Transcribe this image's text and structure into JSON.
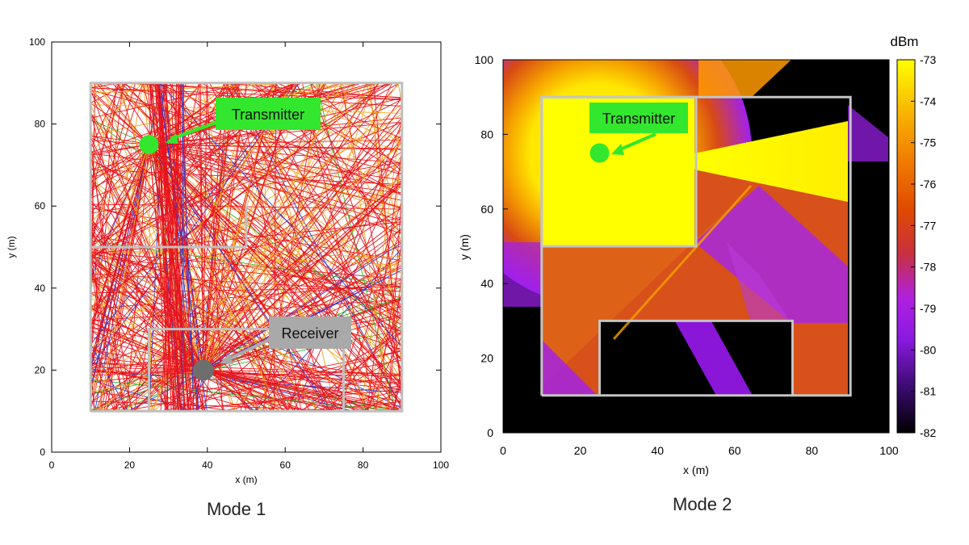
{
  "chart_data": [
    {
      "id": "mode1",
      "type": "scatter",
      "title": "",
      "caption": "Mode 1",
      "xlabel": "x (m)",
      "ylabel": "y (m)",
      "xlim": [
        0,
        100
      ],
      "ylim": [
        0,
        100
      ],
      "xticks": [
        0,
        20,
        40,
        60,
        80,
        100
      ],
      "yticks": [
        0,
        20,
        40,
        60,
        80,
        100
      ],
      "grid": false,
      "rooms": [
        {
          "name": "outer-wall",
          "x": [
            10,
            90,
            90,
            10,
            10
          ],
          "y": [
            10,
            10,
            90,
            90,
            10
          ]
        },
        {
          "name": "inner-wall-left",
          "x": [
            10,
            50
          ],
          "y": [
            50,
            50
          ]
        },
        {
          "name": "inner-wall-vertical",
          "x": [
            50,
            50
          ],
          "y": [
            50,
            60
          ]
        },
        {
          "name": "lower-room",
          "x": [
            25,
            25,
            75,
            75
          ],
          "y": [
            10,
            30,
            30,
            10
          ]
        }
      ],
      "points": [
        {
          "name": "Transmitter",
          "x": 25,
          "y": 75,
          "color": "#33e62e"
        },
        {
          "name": "Receiver",
          "x": 39,
          "y": 20,
          "color": "#6e6e6e"
        }
      ],
      "annotations": [
        {
          "text": "Transmitter",
          "points_to": "Transmitter",
          "color": "#33e62e"
        },
        {
          "text": "Receiver",
          "points_to": "Receiver",
          "color": "#a9a9a9"
        }
      ],
      "ray_colors": [
        "#e8141e",
        "#f5a623",
        "#1f3ad8",
        "#2cb52c"
      ]
    },
    {
      "id": "mode2",
      "type": "heatmap",
      "title": "",
      "caption": "Mode 2",
      "xlabel": "x (m)",
      "ylabel": "y (m)",
      "xlim": [
        0,
        100
      ],
      "ylim": [
        0,
        100
      ],
      "xticks": [
        0,
        20,
        40,
        60,
        80,
        100
      ],
      "yticks": [
        0,
        20,
        40,
        60,
        80,
        100
      ],
      "colorbar": {
        "label": "dBm",
        "min": -82,
        "max": -73,
        "ticks": [
          -73,
          -74,
          -75,
          -76,
          -77,
          -78,
          -79,
          -80,
          -81,
          -82
        ],
        "colors": [
          "#000000",
          "#3a0a6e",
          "#7a1ad0",
          "#a020f0",
          "#c03050",
          "#d83a10",
          "#e85e00",
          "#f08c00",
          "#f8c000",
          "#ffff00"
        ]
      },
      "rooms": [
        {
          "name": "outer-wall",
          "x": [
            10,
            90,
            90,
            10,
            10
          ],
          "y": [
            10,
            10,
            90,
            90,
            10
          ]
        },
        {
          "name": "transmitter-room",
          "x": [
            10,
            50,
            50,
            10,
            10
          ],
          "y": [
            50,
            50,
            90,
            90,
            50
          ]
        },
        {
          "name": "lower-room",
          "x": [
            25,
            25,
            75,
            75
          ],
          "y": [
            10,
            30,
            30,
            10
          ]
        }
      ],
      "points": [
        {
          "name": "Transmitter",
          "x": 25,
          "y": 75,
          "color": "#33e62e"
        }
      ],
      "annotations": [
        {
          "text": "Transmitter",
          "points_to": "Transmitter",
          "color": "#33e62e"
        }
      ]
    }
  ]
}
